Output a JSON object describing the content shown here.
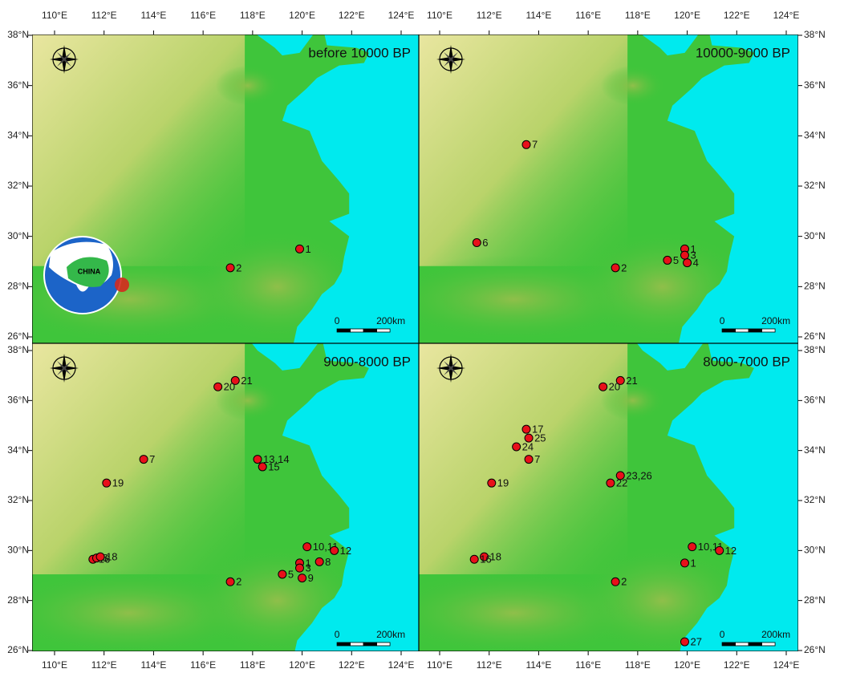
{
  "lon_ticks": [
    {
      "value": 110,
      "label": "110°E"
    },
    {
      "value": 112,
      "label": "112°E"
    },
    {
      "value": 114,
      "label": "114°E"
    },
    {
      "value": 116,
      "label": "116°E"
    },
    {
      "value": 118,
      "label": "118°E"
    },
    {
      "value": 120,
      "label": "120°E"
    },
    {
      "value": 122,
      "label": "122°E"
    },
    {
      "value": 124,
      "label": "124°E"
    }
  ],
  "lat_ticks": [
    {
      "value": 38,
      "label": "38°N"
    },
    {
      "value": 36,
      "label": "36°N"
    },
    {
      "value": 34,
      "label": "34°N"
    },
    {
      "value": 32,
      "label": "32°N"
    },
    {
      "value": 30,
      "label": "30°N"
    },
    {
      "value": 28,
      "label": "28°N"
    },
    {
      "value": 26,
      "label": "26°N"
    }
  ],
  "scale_bar": {
    "start": "0",
    "end": "200km"
  },
  "inset": {
    "label": "CHINA"
  },
  "panels": [
    {
      "title": "before 10000 BP",
      "sites": [
        {
          "label": "1",
          "lon": 119.9,
          "lat": 29.5
        },
        {
          "label": "2",
          "lon": 117.1,
          "lat": 28.75
        }
      ]
    },
    {
      "title": "10000-9000 BP",
      "sites": [
        {
          "label": "7",
          "lon": 113.5,
          "lat": 33.65
        },
        {
          "label": "6",
          "lon": 111.5,
          "lat": 29.75
        },
        {
          "label": "1",
          "lon": 119.9,
          "lat": 29.5
        },
        {
          "label": "3",
          "lon": 119.9,
          "lat": 29.25
        },
        {
          "label": "5",
          "lon": 119.2,
          "lat": 29.05
        },
        {
          "label": "4",
          "lon": 120.0,
          "lat": 28.95
        },
        {
          "label": "2",
          "lon": 117.1,
          "lat": 28.75
        }
      ]
    },
    {
      "title": "9000-8000 BP",
      "sites": [
        {
          "label": "21",
          "lon": 117.3,
          "lat": 36.8
        },
        {
          "label": "20",
          "lon": 116.6,
          "lat": 36.55
        },
        {
          "label": "13,14",
          "lon": 118.2,
          "lat": 33.65
        },
        {
          "label": "15",
          "lon": 118.4,
          "lat": 33.35
        },
        {
          "label": "7",
          "lon": 113.6,
          "lat": 33.65
        },
        {
          "label": "19",
          "lon": 112.1,
          "lat": 32.7
        },
        {
          "label": "10,11",
          "lon": 120.2,
          "lat": 30.15
        },
        {
          "label": "12",
          "lon": 121.3,
          "lat": 30.0
        },
        {
          "label": "16",
          "lon": 111.55,
          "lat": 29.65
        },
        {
          "label": "6",
          "lon": 111.7,
          "lat": 29.7
        },
        {
          "label": "18",
          "lon": 111.85,
          "lat": 29.75
        },
        {
          "label": "1",
          "lon": 119.9,
          "lat": 29.5
        },
        {
          "label": "8",
          "lon": 120.7,
          "lat": 29.55
        },
        {
          "label": "3",
          "lon": 119.9,
          "lat": 29.3
        },
        {
          "label": "5",
          "lon": 119.2,
          "lat": 29.05
        },
        {
          "label": "9",
          "lon": 120.0,
          "lat": 28.9
        },
        {
          "label": "2",
          "lon": 117.1,
          "lat": 28.75
        }
      ]
    },
    {
      "title": "8000-7000 BP",
      "sites": [
        {
          "label": "21",
          "lon": 117.3,
          "lat": 36.8
        },
        {
          "label": "20",
          "lon": 116.6,
          "lat": 36.55
        },
        {
          "label": "17",
          "lon": 113.5,
          "lat": 34.85
        },
        {
          "label": "25",
          "lon": 113.6,
          "lat": 34.5
        },
        {
          "label": "24",
          "lon": 113.1,
          "lat": 34.15
        },
        {
          "label": "7",
          "lon": 113.6,
          "lat": 33.65
        },
        {
          "label": "23,26",
          "lon": 117.3,
          "lat": 33.0
        },
        {
          "label": "22",
          "lon": 116.9,
          "lat": 32.7
        },
        {
          "label": "19",
          "lon": 112.1,
          "lat": 32.7
        },
        {
          "label": "10,11",
          "lon": 120.2,
          "lat": 30.15
        },
        {
          "label": "12",
          "lon": 121.3,
          "lat": 30.0
        },
        {
          "label": "18",
          "lon": 111.8,
          "lat": 29.75
        },
        {
          "label": "16",
          "lon": 111.4,
          "lat": 29.65
        },
        {
          "label": "1",
          "lon": 119.9,
          "lat": 29.5
        },
        {
          "label": "2",
          "lon": 117.1,
          "lat": 28.75
        },
        {
          "label": "27",
          "lon": 119.9,
          "lat": 26.35
        }
      ]
    }
  ]
}
